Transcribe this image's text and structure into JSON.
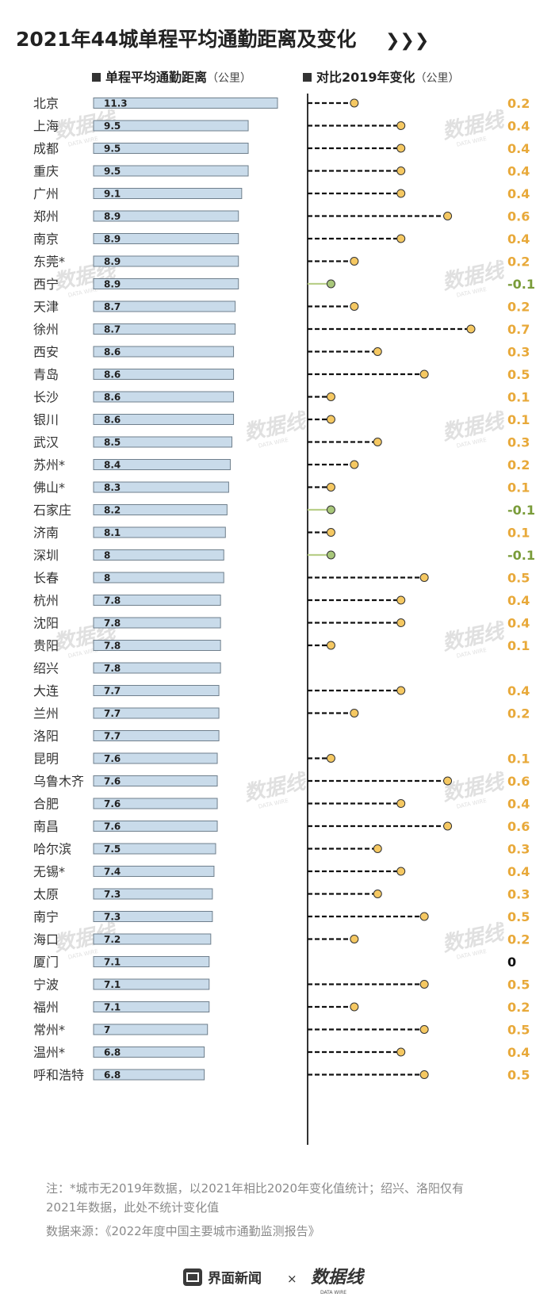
{
  "chart_data": {
    "type": "bar",
    "title": "2021年44城单程平均通勤距离及变化",
    "title_arrows": "❯❯❯",
    "left_header": {
      "label": "单程平均通勤距离",
      "unit": "（公里）"
    },
    "right_header": {
      "label": "对比2019年变化",
      "unit": "（公里）"
    },
    "categories": [
      "北京",
      "上海",
      "成都",
      "重庆",
      "广州",
      "郑州",
      "南京",
      "东莞*",
      "西宁",
      "天津",
      "徐州",
      "西安",
      "青岛",
      "长沙",
      "银川",
      "武汉",
      "苏州*",
      "佛山*",
      "石家庄",
      "济南",
      "深圳",
      "长春",
      "杭州",
      "沈阳",
      "贵阳",
      "绍兴",
      "大连",
      "兰州",
      "洛阳",
      "昆明",
      "乌鲁木齐",
      "合肥",
      "南昌",
      "哈尔滨",
      "无锡*",
      "太原",
      "南宁",
      "海口",
      "厦门",
      "宁波",
      "福州",
      "常州*",
      "温州*",
      "呼和浩特"
    ],
    "distance": [
      11.3,
      9.5,
      9.5,
      9.5,
      9.1,
      8.9,
      8.9,
      8.9,
      8.9,
      8.7,
      8.7,
      8.6,
      8.6,
      8.6,
      8.6,
      8.5,
      8.4,
      8.3,
      8.2,
      8.1,
      8,
      8,
      7.8,
      7.8,
      7.8,
      7.8,
      7.7,
      7.7,
      7.7,
      7.6,
      7.6,
      7.6,
      7.6,
      7.5,
      7.4,
      7.3,
      7.3,
      7.2,
      7.1,
      7.1,
      7.1,
      7,
      6.8,
      6.8
    ],
    "distance_labels": [
      "11.3",
      "9.5",
      "9.5",
      "9.5",
      "9.1",
      "8.9",
      "8.9",
      "8.9",
      "8.9",
      "8.7",
      "8.7",
      "8.6",
      "8.6",
      "8.6",
      "8.6",
      "8.5",
      "8.4",
      "8.3",
      "8.2",
      "8.1",
      "8",
      "8",
      "7.8",
      "7.8",
      "7.8",
      "7.8",
      "7.7",
      "7.7",
      "7.7",
      "7.6",
      "7.6",
      "7.6",
      "7.6",
      "7.5",
      "7.4",
      "7.3",
      "7.3",
      "7.2",
      "7.1",
      "7.1",
      "7.1",
      "7",
      "6.8",
      "6.8"
    ],
    "change": [
      0.2,
      0.4,
      0.4,
      0.4,
      0.4,
      0.6,
      0.4,
      0.2,
      -0.1,
      0.2,
      0.7,
      0.3,
      0.5,
      0.1,
      0.1,
      0.3,
      0.2,
      0.1,
      -0.1,
      0.1,
      -0.1,
      0.5,
      0.4,
      0.4,
      0.1,
      null,
      0.4,
      0.2,
      null,
      0.1,
      0.6,
      0.4,
      0.6,
      0.3,
      0.4,
      0.3,
      0.5,
      0.2,
      0,
      0.5,
      0.2,
      0.5,
      0.4,
      0.5
    ],
    "change_labels": [
      "0.2",
      "0.4",
      "0.4",
      "0.4",
      "0.4",
      "0.6",
      "0.4",
      "0.2",
      "-0.1",
      "0.2",
      "0.7",
      "0.3",
      "0.5",
      "0.1",
      "0.1",
      "0.3",
      "0.2",
      "0.1",
      "-0.1",
      "0.1",
      "-0.1",
      "0.5",
      "0.4",
      "0.4",
      "0.1",
      "",
      "0.4",
      "0.2",
      "",
      "0.1",
      "0.6",
      "0.4",
      "0.6",
      "0.3",
      "0.4",
      "0.3",
      "0.5",
      "0.2",
      "0",
      "0.5",
      "0.2",
      "0.5",
      "0.4",
      "0.5"
    ],
    "distance_max": 11.3,
    "change_max": 0.7,
    "colors": {
      "bar_fill": "#c9dbea",
      "bar_stroke": "#6f7f8c",
      "positive": "#e8a93a",
      "dot_positive": "#f5c862",
      "negative": "#7a9c3a",
      "negative_line": "#b9cf8a",
      "dot_negative": "#a8c77a",
      "zero": "#111111",
      "axis": "#333333"
    },
    "grid": false
  },
  "footer": {
    "note_line1": "注：*城市无2019年数据，以2021年相比2020年变化值统计；绍兴、洛阳仅有",
    "note_line2": "2021年数据，此处不统计变化值",
    "source": "数据来源：《2022年度中国主要城市通勤监测报告》",
    "brand1": "界面新闻",
    "times": "×",
    "brand2": "数据线",
    "brand2_sub": "DATA WIRE"
  },
  "watermark": {
    "text": "数据线",
    "sub": "DATA WIRE"
  }
}
